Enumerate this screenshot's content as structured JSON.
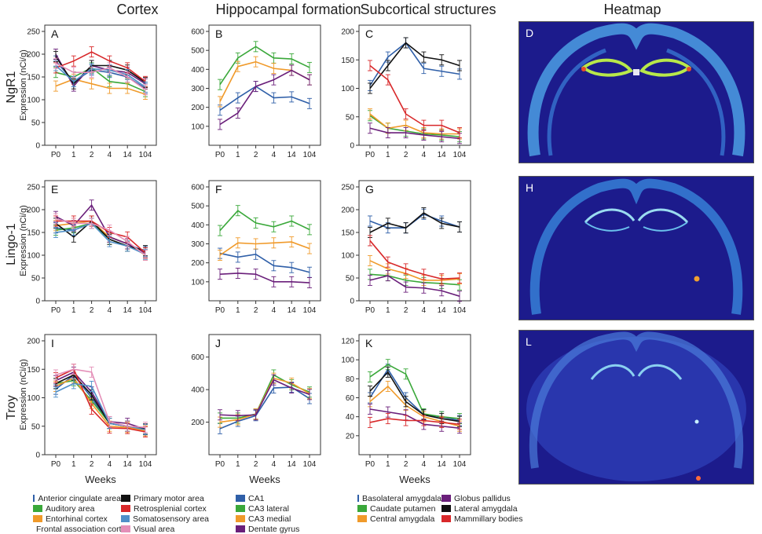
{
  "columns": [
    "Cortex",
    "Hippocampal formation",
    "Subcortical structures",
    "Heatmap"
  ],
  "rows": [
    "NgR1",
    "Lingo-1",
    "Troy"
  ],
  "ylabel": "Expression (nCi/g)",
  "xlabel": "Weeks",
  "heatmap_labels": [
    "D",
    "H",
    "L"
  ],
  "legends": {
    "cortex": [
      {
        "name": "Anterior cingulate area",
        "color": "#2f5fa8"
      },
      {
        "name": "Auditory area",
        "color": "#3aa83a"
      },
      {
        "name": "Entorhinal cortex",
        "color": "#f09a2a"
      },
      {
        "name": "Frontal association cortex",
        "color": "#6a1f7a"
      },
      {
        "name": "Primary motor area",
        "color": "#111111"
      },
      {
        "name": "Retrosplenial cortex",
        "color": "#d8282a"
      },
      {
        "name": "Somatosensory area",
        "color": "#4f8fc8"
      },
      {
        "name": "Visual area",
        "color": "#e48fb8"
      }
    ],
    "hippo": [
      {
        "name": "CA1",
        "color": "#2f5fa8"
      },
      {
        "name": "CA3 lateral",
        "color": "#3aa83a"
      },
      {
        "name": "CA3 medial",
        "color": "#f09a2a"
      },
      {
        "name": "Dentate gyrus",
        "color": "#6a1f7a"
      }
    ],
    "sub": [
      {
        "name": "Basolateral amygdala",
        "color": "#2f5fa8"
      },
      {
        "name": "Caudate putamen",
        "color": "#3aa83a"
      },
      {
        "name": "Central amygdala",
        "color": "#f09a2a"
      },
      {
        "name": "Globus pallidus",
        "color": "#6a1f7a"
      },
      {
        "name": "Lateral amygdala",
        "color": "#111111"
      },
      {
        "name": "Mammillary bodies",
        "color": "#d8282a"
      }
    ]
  },
  "chart_data": [
    {
      "label": "A",
      "type": "line",
      "categories": [
        "P0",
        "1",
        "2",
        "4",
        "14",
        "104"
      ],
      "ylim": [
        0,
        250
      ],
      "yticks": [
        0,
        50,
        100,
        150,
        200,
        250
      ],
      "group": "cortex",
      "series": [
        {
          "name": "Anterior cingulate area",
          "values": [
            185,
            140,
            165,
            160,
            150,
            125
          ]
        },
        {
          "name": "Auditory area",
          "values": [
            160,
            150,
            170,
            140,
            135,
            118
          ]
        },
        {
          "name": "Entorhinal cortex",
          "values": [
            130,
            145,
            135,
            125,
            125,
            112
          ]
        },
        {
          "name": "Frontal association cortex",
          "values": [
            200,
            130,
            175,
            165,
            160,
            135
          ]
        },
        {
          "name": "Primary motor area",
          "values": [
            195,
            135,
            175,
            175,
            165,
            138
          ]
        },
        {
          "name": "Retrosplenial cortex",
          "values": [
            170,
            185,
            205,
            185,
            170,
            140
          ]
        },
        {
          "name": "Somatosensory area",
          "values": [
            175,
            140,
            168,
            165,
            155,
            128
          ]
        },
        {
          "name": "Visual area",
          "values": [
            180,
            160,
            160,
            170,
            150,
            122
          ]
        }
      ]
    },
    {
      "label": "B",
      "type": "line",
      "categories": [
        "P0",
        "1",
        "2",
        "4",
        "14",
        "104"
      ],
      "ylim": [
        0,
        600
      ],
      "yticks": [
        100,
        200,
        300,
        400,
        500,
        600
      ],
      "group": "hippo",
      "series": [
        {
          "name": "CA1",
          "values": [
            185,
            250,
            310,
            250,
            255,
            220
          ]
        },
        {
          "name": "CA3 lateral",
          "values": [
            320,
            460,
            520,
            460,
            455,
            410
          ]
        },
        {
          "name": "CA3 medial",
          "values": [
            230,
            415,
            440,
            405,
            395,
            345
          ]
        },
        {
          "name": "Dentate gyrus",
          "values": [
            110,
            170,
            310,
            345,
            395,
            345
          ]
        }
      ]
    },
    {
      "label": "C",
      "type": "line",
      "categories": [
        "P0",
        "1",
        "2",
        "4",
        "14",
        "104"
      ],
      "ylim": [
        0,
        200
      ],
      "yticks": [
        0,
        50,
        100,
        150,
        200
      ],
      "group": "sub",
      "series": [
        {
          "name": "Basolateral amygdala",
          "values": [
            105,
            155,
            180,
            135,
            130,
            125
          ]
        },
        {
          "name": "Caudate putamen",
          "values": [
            52,
            30,
            25,
            20,
            18,
            15
          ]
        },
        {
          "name": "Central amygdala",
          "values": [
            55,
            30,
            35,
            22,
            20,
            20
          ]
        },
        {
          "name": "Globus pallidus",
          "values": [
            30,
            22,
            22,
            18,
            15,
            12
          ]
        },
        {
          "name": "Lateral amygdala",
          "values": [
            100,
            140,
            180,
            155,
            150,
            140
          ]
        },
        {
          "name": "Mammillary bodies",
          "values": [
            140,
            115,
            55,
            35,
            35,
            22
          ]
        }
      ]
    },
    {
      "label": "E",
      "type": "line",
      "categories": [
        "P0",
        "1",
        "2",
        "4",
        "14",
        "104"
      ],
      "ylim": [
        0,
        250
      ],
      "yticks": [
        0,
        50,
        100,
        150,
        200,
        250
      ],
      "group": "cortex",
      "series": [
        {
          "name": "Anterior cingulate area",
          "values": [
            160,
            155,
            170,
            140,
            125,
            108
          ]
        },
        {
          "name": "Auditory area",
          "values": [
            155,
            160,
            170,
            135,
            120,
            105
          ]
        },
        {
          "name": "Entorhinal cortex",
          "values": [
            165,
            170,
            175,
            140,
            125,
            100
          ]
        },
        {
          "name": "Frontal association cortex",
          "values": [
            185,
            165,
            210,
            140,
            125,
            105
          ]
        },
        {
          "name": "Primary motor area",
          "values": [
            170,
            140,
            175,
            135,
            120,
            110
          ]
        },
        {
          "name": "Retrosplenial cortex",
          "values": [
            175,
            175,
            175,
            150,
            140,
            105
          ]
        },
        {
          "name": "Somatosensory area",
          "values": [
            150,
            155,
            170,
            130,
            120,
            102
          ]
        },
        {
          "name": "Visual area",
          "values": [
            180,
            170,
            170,
            155,
            130,
            100
          ]
        }
      ]
    },
    {
      "label": "F",
      "type": "line",
      "categories": [
        "P0",
        "1",
        "2",
        "4",
        "14",
        "104"
      ],
      "ylim": [
        0,
        600
      ],
      "yticks": [
        100,
        200,
        300,
        400,
        500,
        600
      ],
      "group": "hippo",
      "series": [
        {
          "name": "CA1",
          "values": [
            250,
            230,
            245,
            185,
            175,
            150
          ]
        },
        {
          "name": "CA3 lateral",
          "values": [
            370,
            475,
            410,
            390,
            420,
            375
          ]
        },
        {
          "name": "CA3 medial",
          "values": [
            240,
            305,
            300,
            305,
            310,
            275
          ]
        },
        {
          "name": "Dentate gyrus",
          "values": [
            140,
            145,
            140,
            100,
            100,
            95
          ]
        }
      ]
    },
    {
      "label": "G",
      "type": "line",
      "categories": [
        "P0",
        "1",
        "2",
        "4",
        "14",
        "104"
      ],
      "ylim": [
        0,
        250
      ],
      "yticks": [
        0,
        50,
        100,
        150,
        200,
        250
      ],
      "group": "sub",
      "series": [
        {
          "name": "Basolateral amygdala",
          "values": [
            175,
            160,
            160,
            190,
            175,
            162
          ]
        },
        {
          "name": "Caudate putamen",
          "values": [
            58,
            55,
            45,
            40,
            38,
            35
          ]
        },
        {
          "name": "Central amygdala",
          "values": [
            88,
            70,
            60,
            45,
            45,
            48
          ]
        },
        {
          "name": "Globus pallidus",
          "values": [
            45,
            55,
            30,
            28,
            22,
            10
          ]
        },
        {
          "name": "Lateral amygdala",
          "values": [
            150,
            170,
            160,
            193,
            170,
            162
          ]
        },
        {
          "name": "Mammillary bodies",
          "values": [
            132,
            85,
            70,
            58,
            48,
            50
          ]
        }
      ]
    },
    {
      "label": "I",
      "type": "line",
      "categories": [
        "P0",
        "1",
        "2",
        "4",
        "14",
        "104"
      ],
      "ylim": [
        0,
        200
      ],
      "yticks": [
        0,
        50,
        100,
        150,
        200
      ],
      "group": "cortex",
      "series": [
        {
          "name": "Anterior cingulate area",
          "values": [
            115,
            140,
            100,
            55,
            50,
            45
          ]
        },
        {
          "name": "Auditory area",
          "values": [
            125,
            130,
            95,
            55,
            50,
            42
          ]
        },
        {
          "name": "Entorhinal cortex",
          "values": [
            120,
            135,
            90,
            50,
            48,
            42
          ]
        },
        {
          "name": "Frontal association cortex",
          "values": [
            130,
            145,
            110,
            58,
            55,
            45
          ]
        },
        {
          "name": "Primary motor area",
          "values": [
            125,
            140,
            105,
            55,
            50,
            45
          ]
        },
        {
          "name": "Retrosplenial cortex",
          "values": [
            135,
            150,
            80,
            47,
            46,
            40
          ]
        },
        {
          "name": "Somatosensory area",
          "values": [
            110,
            125,
            120,
            55,
            50,
            44
          ]
        },
        {
          "name": "Visual area",
          "values": [
            140,
            150,
            145,
            58,
            50,
            48
          ]
        }
      ]
    },
    {
      "label": "J",
      "type": "line",
      "categories": [
        "P0",
        "1",
        "2",
        "4",
        "14",
        "104"
      ],
      "ylim": [
        0,
        700
      ],
      "yticks": [
        200,
        400,
        600
      ],
      "group": "hippo",
      "series": [
        {
          "name": "CA1",
          "values": [
            160,
            205,
            240,
            410,
            415,
            345
          ]
        },
        {
          "name": "CA3 lateral",
          "values": [
            225,
            225,
            250,
            490,
            430,
            385
          ]
        },
        {
          "name": "CA3 medial",
          "values": [
            200,
            215,
            250,
            470,
            440,
            375
          ]
        },
        {
          "name": "Dentate gyrus",
          "values": [
            245,
            240,
            245,
            460,
            410,
            370
          ]
        }
      ]
    },
    {
      "label": "K",
      "type": "line",
      "categories": [
        "P0",
        "1",
        "2",
        "4",
        "14",
        "104"
      ],
      "ylim": [
        0,
        120
      ],
      "yticks": [
        20,
        40,
        60,
        80,
        100,
        120
      ],
      "group": "sub",
      "series": [
        {
          "name": "Basolateral amygdala",
          "values": [
            60,
            90,
            60,
            42,
            40,
            36
          ]
        },
        {
          "name": "Caudate putamen",
          "values": [
            82,
            95,
            85,
            43,
            40,
            38
          ]
        },
        {
          "name": "Central amygdala",
          "values": [
            56,
            72,
            52,
            40,
            35,
            30
          ]
        },
        {
          "name": "Globus pallidus",
          "values": [
            48,
            45,
            42,
            32,
            30,
            28
          ]
        },
        {
          "name": "Lateral amygdala",
          "values": [
            67,
            87,
            56,
            42,
            38,
            35
          ]
        },
        {
          "name": "Mammillary bodies",
          "values": [
            34,
            38,
            36,
            36,
            34,
            32
          ]
        }
      ]
    }
  ]
}
